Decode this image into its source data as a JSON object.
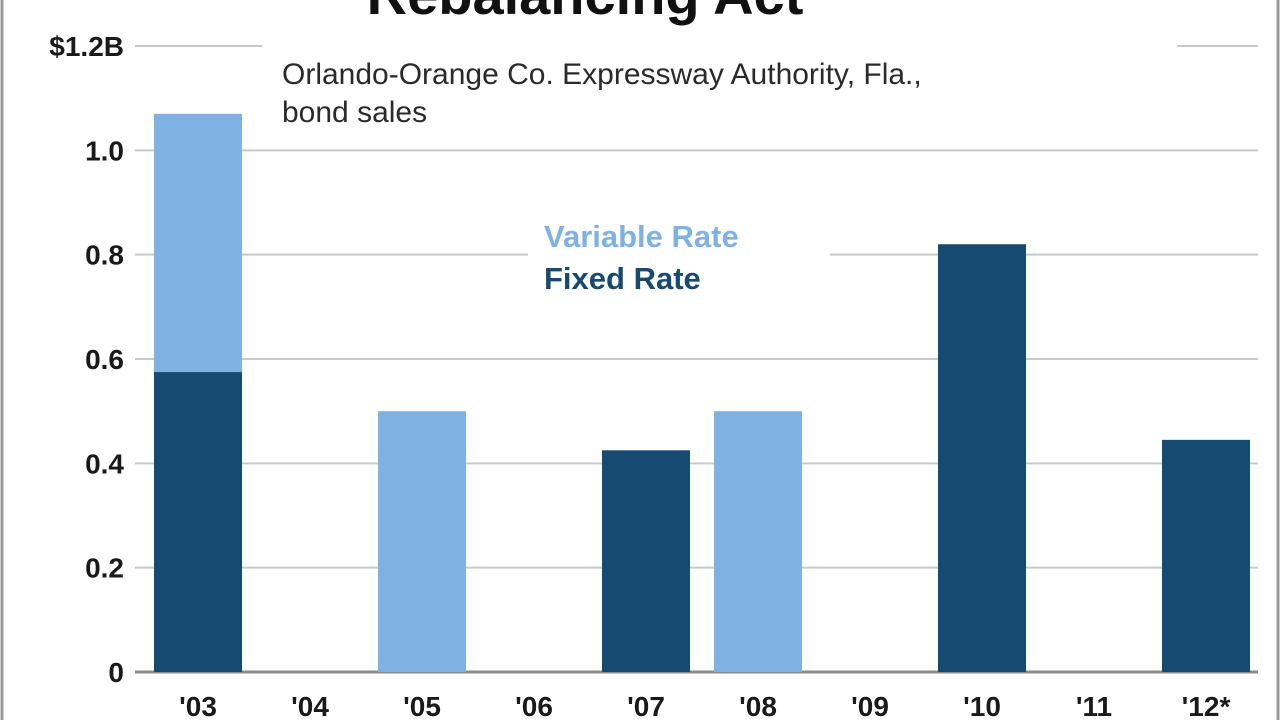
{
  "colors": {
    "variable": "#7fb2e2",
    "fixed": "#164a70",
    "grid": "#c9c9c9",
    "frame": "#9a9a9a"
  },
  "chart_data": {
    "type": "bar",
    "stacked": true,
    "title": "Rebalancing Act",
    "subtitle_lines": [
      "Orlando-Orange Co. Expressway Authority, Fla.,",
      "bond sales"
    ],
    "categories": [
      "'03",
      "'04",
      "'05",
      "'06",
      "'07",
      "'08",
      "'09",
      "'10",
      "'11",
      "'12*"
    ],
    "series": [
      {
        "name": "Fixed Rate",
        "values": [
          0.575,
          0,
          0,
          0,
          0.425,
          0,
          0,
          0.82,
          0,
          0.445
        ]
      },
      {
        "name": "Variable Rate",
        "values": [
          0.495,
          0,
          0.5,
          0,
          0,
          0.5,
          0,
          0,
          0,
          0
        ]
      }
    ],
    "y_ticks": [
      "0",
      "0.2",
      "0.4",
      "0.6",
      "0.8",
      "1.0",
      "$1.2B"
    ],
    "y_tick_values": [
      0,
      0.2,
      0.4,
      0.6,
      0.8,
      1.0,
      1.2
    ],
    "ylim": [
      0,
      1.2
    ],
    "grid": true,
    "legend_position": "top-center"
  }
}
